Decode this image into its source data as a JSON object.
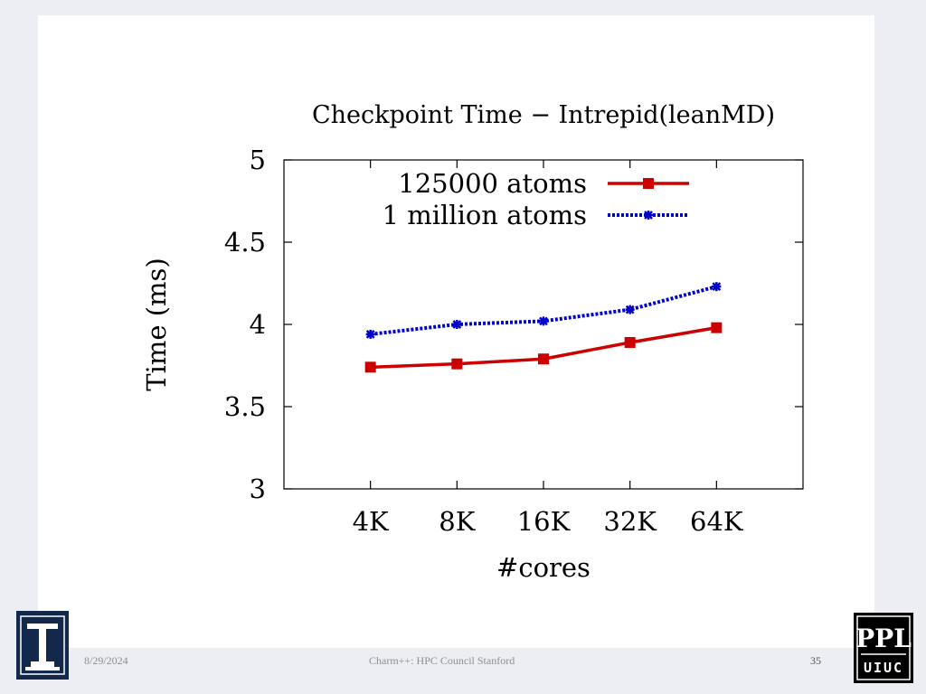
{
  "chart_data": {
    "type": "line",
    "title": "Checkpoint Time − Intrepid(leanMD)",
    "xlabel": "#cores",
    "ylabel": "Time (ms)",
    "categories": [
      "4K",
      "8K",
      "16K",
      "32K",
      "64K"
    ],
    "ylim": [
      3,
      5
    ],
    "yticks": [
      "3",
      "3.5",
      "4",
      "4.5",
      "5"
    ],
    "ytick_values": [
      3,
      3.5,
      4,
      4.5,
      5
    ],
    "legend_position": "top-right",
    "series": [
      {
        "name": "125000 atoms",
        "values": [
          3.74,
          3.76,
          3.79,
          3.89,
          3.98
        ],
        "color": "#cc0000",
        "style": "solid",
        "marker": "square"
      },
      {
        "name": "1 million atoms",
        "values": [
          3.94,
          4.0,
          4.02,
          4.09,
          4.23
        ],
        "color": "#0000cc",
        "style": "dotted",
        "marker": "star"
      }
    ]
  },
  "footer": {
    "date": "8/29/2024",
    "title": "Charm++: HPC Council Stanford",
    "page": "35"
  },
  "logos": {
    "right_text_top": "PPL",
    "right_text_bottom": "UIUC"
  }
}
